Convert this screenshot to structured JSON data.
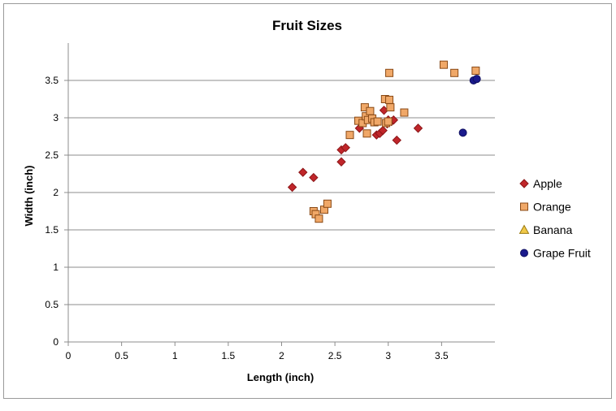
{
  "chart_data": {
    "type": "scatter",
    "title": "Fruit Sizes",
    "xlabel": "Length (inch)",
    "ylabel": "Width (inch)",
    "xlim": [
      0,
      4
    ],
    "ylim": [
      0,
      4
    ],
    "xticks": [
      0,
      0.5,
      1,
      1.5,
      2,
      2.5,
      3,
      3.5
    ],
    "yticks": [
      0,
      0.5,
      1,
      1.5,
      2,
      2.5,
      3,
      3.5
    ],
    "xtick_labels": [
      "0",
      "0.5",
      "1",
      "1.5",
      "2",
      "2.5",
      "3",
      "3.5"
    ],
    "ytick_labels": [
      "0",
      "0.5",
      "1",
      "1.5",
      "2",
      "2.5",
      "3",
      "3.5"
    ],
    "grid": "horizontal",
    "legend_position": "right",
    "series": [
      {
        "name": "Apple",
        "marker": "diamond",
        "color": "#c0262a",
        "stroke": "#8c1618",
        "points": [
          [
            2.1,
            2.07
          ],
          [
            2.2,
            2.27
          ],
          [
            2.3,
            2.2
          ],
          [
            2.56,
            2.41
          ],
          [
            2.56,
            2.57
          ],
          [
            2.6,
            2.6
          ],
          [
            2.73,
            2.86
          ],
          [
            2.89,
            2.77
          ],
          [
            2.92,
            2.79
          ],
          [
            2.95,
            2.83
          ],
          [
            2.96,
            3.1
          ],
          [
            2.99,
            2.92
          ],
          [
            3.0,
            2.97
          ],
          [
            3.03,
            2.95
          ],
          [
            3.05,
            2.97
          ],
          [
            3.08,
            2.7
          ],
          [
            3.28,
            2.86
          ]
        ]
      },
      {
        "name": "Orange",
        "marker": "square",
        "color": "#f0a868",
        "stroke": "#8a4a16",
        "points": [
          [
            2.3,
            1.75
          ],
          [
            2.32,
            1.71
          ],
          [
            2.35,
            1.65
          ],
          [
            2.4,
            1.77
          ],
          [
            2.43,
            1.85
          ],
          [
            2.64,
            2.77
          ],
          [
            2.72,
            2.96
          ],
          [
            2.76,
            2.93
          ],
          [
            2.78,
            3.14
          ],
          [
            2.79,
            3.02
          ],
          [
            2.8,
            2.79
          ],
          [
            2.81,
            2.97
          ],
          [
            2.83,
            3.09
          ],
          [
            2.85,
            2.99
          ],
          [
            2.87,
            2.94
          ],
          [
            2.9,
            2.95
          ],
          [
            2.97,
            3.25
          ],
          [
            2.98,
            2.93
          ],
          [
            3.0,
            2.95
          ],
          [
            3.01,
            3.6
          ],
          [
            3.01,
            3.24
          ],
          [
            3.02,
            3.14
          ],
          [
            3.15,
            3.07
          ],
          [
            3.52,
            3.71
          ],
          [
            3.62,
            3.6
          ],
          [
            3.82,
            3.63
          ]
        ]
      },
      {
        "name": "Banana",
        "marker": "triangle",
        "color": "#f0c848",
        "stroke": "#9a7a10",
        "points": []
      },
      {
        "name": "Grape Fruit",
        "marker": "circle",
        "color": "#1a1a8c",
        "stroke": "#101060",
        "points": [
          [
            3.7,
            2.8
          ],
          [
            3.8,
            3.5
          ],
          [
            3.83,
            3.52
          ]
        ]
      }
    ]
  }
}
